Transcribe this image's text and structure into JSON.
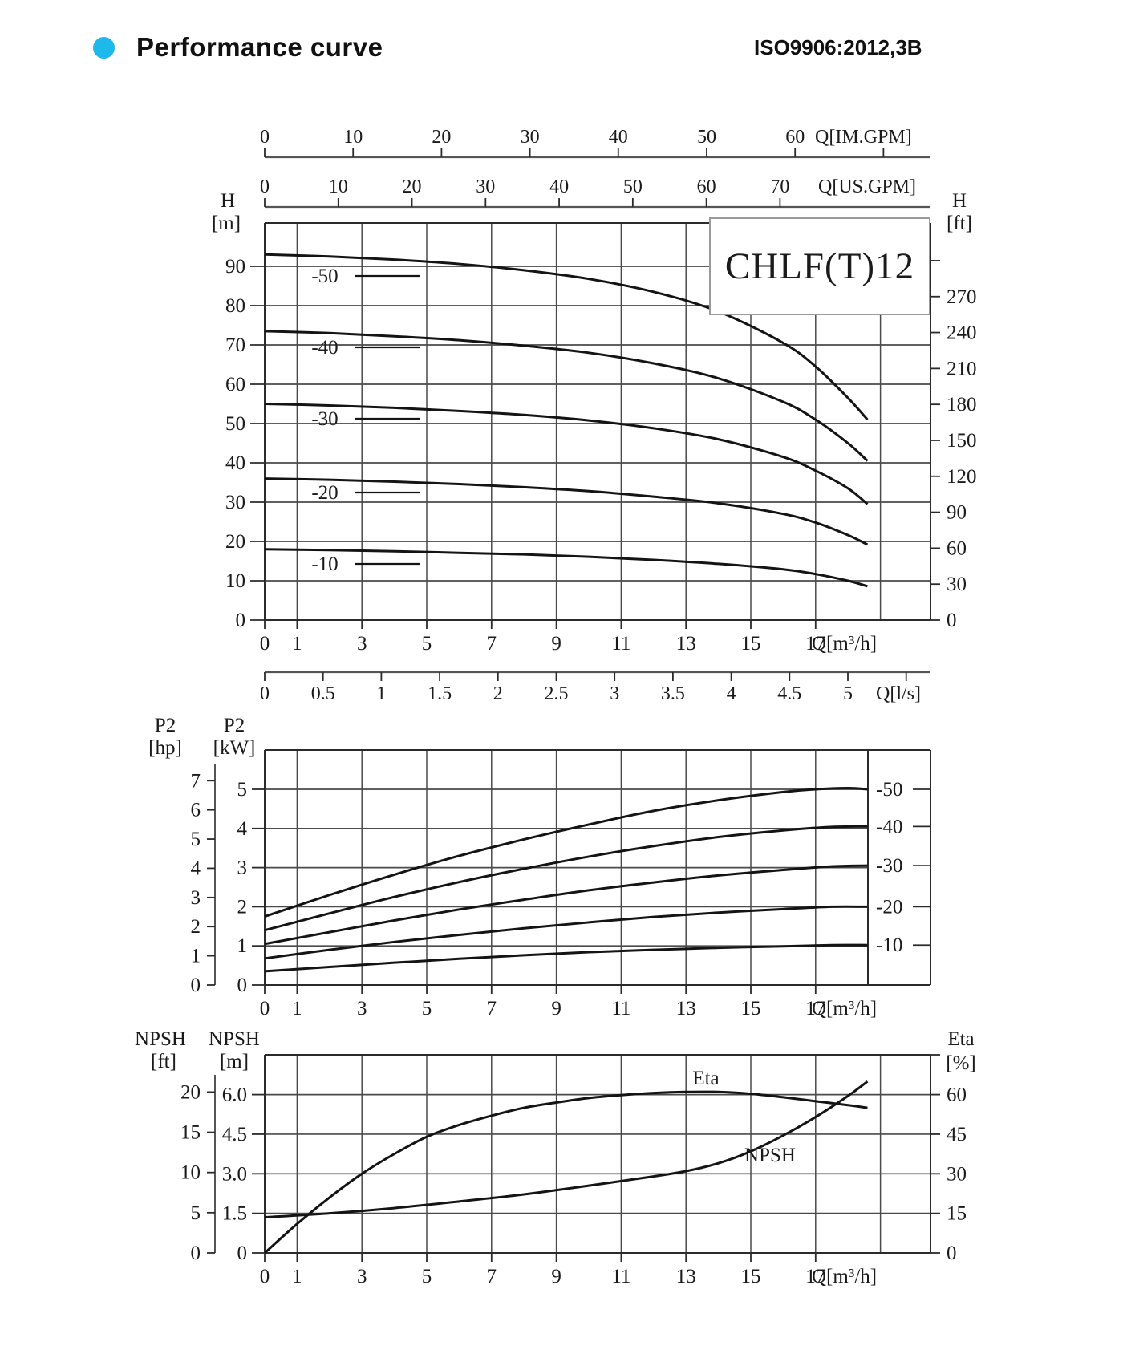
{
  "header": {
    "title": "Performance curve",
    "standard": "ISO9906:2012,3B",
    "bullet_color": "#1db9ea"
  },
  "axes": {
    "im_gpm": {
      "title": "Q[IM.GPM]",
      "ticks": [
        "0",
        "10",
        "20",
        "30",
        "40",
        "50",
        "60"
      ]
    },
    "us_gpm": {
      "title": "Q[US.GPM]",
      "ticks": [
        "0",
        "10",
        "20",
        "30",
        "40",
        "50",
        "60",
        "70"
      ]
    },
    "q_ls": {
      "title": "Q[l/s]",
      "ticks": [
        "0",
        "0.5",
        "1",
        "1.5",
        "2",
        "2.5",
        "3",
        "3.5",
        "4",
        "4.5",
        "5"
      ]
    },
    "q_m3h": {
      "title": "Q[m³/h]",
      "ticks": [
        "0",
        "1",
        "3",
        "5",
        "7",
        "9",
        "11",
        "13",
        "15",
        "17"
      ]
    }
  },
  "chart_data": [
    {
      "id": "head-curves",
      "type": "line",
      "title": "CHLF(T)12",
      "xlabel": "Q[m³/h]",
      "x_range": [
        0,
        20.5
      ],
      "y_left": {
        "label": "H",
        "unit": "[m]",
        "ticks": [
          "0",
          "10",
          "20",
          "30",
          "40",
          "50",
          "60",
          "70",
          "80",
          "90"
        ],
        "range": [
          0,
          101
        ]
      },
      "y_right": {
        "label": "H",
        "unit": "[ft]",
        "ticks": [
          "0",
          "30",
          "60",
          "90",
          "120",
          "150",
          "180",
          "210",
          "240",
          "270"
        ]
      },
      "series": [
        {
          "name": "-50",
          "points": [
            [
              0,
              93
            ],
            [
              2,
              92.5
            ],
            [
              4,
              91.7
            ],
            [
              6,
              90.6
            ],
            [
              8,
              89
            ],
            [
              10,
              86.8
            ],
            [
              12,
              83.5
            ],
            [
              14,
              78.5
            ],
            [
              16,
              70.5
            ],
            [
              17,
              64.5
            ],
            [
              18,
              56.5
            ],
            [
              18.6,
              51
            ]
          ]
        },
        {
          "name": "-40",
          "points": [
            [
              0,
              73.5
            ],
            [
              2,
              73
            ],
            [
              4,
              72.2
            ],
            [
              6,
              71.2
            ],
            [
              8,
              69.8
            ],
            [
              10,
              68
            ],
            [
              12,
              65.3
            ],
            [
              14,
              61.5
            ],
            [
              16,
              55.5
            ],
            [
              17,
              51
            ],
            [
              18,
              45
            ],
            [
              18.6,
              40.5
            ]
          ]
        },
        {
          "name": "-30",
          "points": [
            [
              0,
              55
            ],
            [
              2,
              54.6
            ],
            [
              4,
              54
            ],
            [
              6,
              53.2
            ],
            [
              8,
              52.2
            ],
            [
              10,
              50.8
            ],
            [
              12,
              48.8
            ],
            [
              14,
              46
            ],
            [
              16,
              41.5
            ],
            [
              17,
              38
            ],
            [
              18,
              33.5
            ],
            [
              18.6,
              29.5
            ]
          ]
        },
        {
          "name": "-20",
          "points": [
            [
              0,
              36
            ],
            [
              2,
              35.7
            ],
            [
              4,
              35.2
            ],
            [
              6,
              34.6
            ],
            [
              8,
              33.8
            ],
            [
              10,
              32.8
            ],
            [
              12,
              31.4
            ],
            [
              14,
              29.7
            ],
            [
              16,
              27
            ],
            [
              17,
              24.8
            ],
            [
              18,
              21.6
            ],
            [
              18.6,
              19.2
            ]
          ]
        },
        {
          "name": "-10",
          "points": [
            [
              0,
              18
            ],
            [
              2,
              17.8
            ],
            [
              4,
              17.5
            ],
            [
              6,
              17.1
            ],
            [
              8,
              16.7
            ],
            [
              10,
              16.1
            ],
            [
              12,
              15.3
            ],
            [
              14,
              14.3
            ],
            [
              16,
              12.9
            ],
            [
              17,
              11.7
            ],
            [
              18,
              10
            ],
            [
              18.6,
              8.6
            ]
          ]
        }
      ]
    },
    {
      "id": "power-curves",
      "type": "line",
      "xlabel": "Q[m³/h]",
      "y_left": {
        "label": "P2",
        "unit": "[kW]",
        "ticks": [
          "0",
          "1",
          "2",
          "3",
          "4",
          "5"
        ],
        "range": [
          0,
          6
        ]
      },
      "y_left_outer": {
        "label": "P2",
        "unit": "[hp]",
        "ticks": [
          "0",
          "1",
          "2",
          "3",
          "4",
          "5",
          "6",
          "7"
        ]
      },
      "series": [
        {
          "name": "-50",
          "points": [
            [
              0,
              1.75
            ],
            [
              2,
              2.3
            ],
            [
              4,
              2.82
            ],
            [
              6,
              3.3
            ],
            [
              8,
              3.72
            ],
            [
              10,
              4.1
            ],
            [
              12,
              4.45
            ],
            [
              14,
              4.72
            ],
            [
              16,
              4.93
            ],
            [
              17,
              5.0
            ],
            [
              18,
              5.03
            ],
            [
              18.6,
              5.0
            ]
          ]
        },
        {
          "name": "-40",
          "points": [
            [
              0,
              1.4
            ],
            [
              2,
              1.83
            ],
            [
              4,
              2.25
            ],
            [
              6,
              2.63
            ],
            [
              8,
              2.97
            ],
            [
              10,
              3.28
            ],
            [
              12,
              3.55
            ],
            [
              14,
              3.78
            ],
            [
              16,
              3.95
            ],
            [
              17.5,
              4.04
            ],
            [
              18.6,
              4.05
            ]
          ]
        },
        {
          "name": "-30",
          "points": [
            [
              0,
              1.05
            ],
            [
              2,
              1.35
            ],
            [
              4,
              1.65
            ],
            [
              6,
              1.93
            ],
            [
              8,
              2.18
            ],
            [
              10,
              2.42
            ],
            [
              12,
              2.62
            ],
            [
              14,
              2.8
            ],
            [
              16,
              2.94
            ],
            [
              17.5,
              3.03
            ],
            [
              18.6,
              3.05
            ]
          ]
        },
        {
          "name": "-20",
          "points": [
            [
              0,
              0.68
            ],
            [
              2,
              0.9
            ],
            [
              4,
              1.1
            ],
            [
              6,
              1.28
            ],
            [
              8,
              1.45
            ],
            [
              10,
              1.6
            ],
            [
              12,
              1.74
            ],
            [
              14,
              1.85
            ],
            [
              16,
              1.94
            ],
            [
              17.5,
              2.0
            ],
            [
              18.6,
              2.0
            ]
          ]
        },
        {
          "name": "-10",
          "points": [
            [
              0,
              0.35
            ],
            [
              2,
              0.46
            ],
            [
              4,
              0.57
            ],
            [
              6,
              0.67
            ],
            [
              8,
              0.76
            ],
            [
              10,
              0.84
            ],
            [
              12,
              0.9
            ],
            [
              14,
              0.95
            ],
            [
              16,
              0.99
            ],
            [
              17.5,
              1.02
            ],
            [
              18.6,
              1.02
            ]
          ]
        }
      ]
    },
    {
      "id": "npsh-eta-curves",
      "type": "line",
      "xlabel": "Q[m³/h]",
      "y_left": {
        "label": "NPSH",
        "unit": "[m]",
        "ticks": [
          "0",
          "1.5",
          "3.0",
          "4.5",
          "6.0"
        ],
        "range": [
          0,
          7.5
        ]
      },
      "y_left_outer": {
        "label": "NPSH",
        "unit": "[ft]",
        "ticks": [
          "0",
          "5",
          "10",
          "15",
          "20"
        ]
      },
      "y_right": {
        "label": "Eta",
        "unit": "[%]",
        "ticks": [
          "0",
          "15",
          "30",
          "45",
          "60"
        ]
      },
      "series": [
        {
          "name": "Eta",
          "unit": "%",
          "points": [
            [
              0,
              0
            ],
            [
              1,
              11
            ],
            [
              2,
              21
            ],
            [
              3,
              30
            ],
            [
              4,
              37.5
            ],
            [
              5,
              44
            ],
            [
              6,
              48.5
            ],
            [
              7,
              52
            ],
            [
              8,
              55
            ],
            [
              9,
              57
            ],
            [
              10,
              58.7
            ],
            [
              11,
              59.8
            ],
            [
              12,
              60.6
            ],
            [
              13,
              61
            ],
            [
              14,
              61
            ],
            [
              15,
              60.3
            ],
            [
              16,
              59
            ],
            [
              17,
              57.5
            ],
            [
              18,
              56
            ],
            [
              18.6,
              55
            ]
          ]
        },
        {
          "name": "NPSH",
          "unit": "m",
          "points": [
            [
              0,
              1.35
            ],
            [
              2,
              1.5
            ],
            [
              4,
              1.7
            ],
            [
              6,
              1.95
            ],
            [
              8,
              2.22
            ],
            [
              10,
              2.55
            ],
            [
              12,
              2.9
            ],
            [
              13,
              3.1
            ],
            [
              14,
              3.4
            ],
            [
              15,
              3.85
            ],
            [
              16,
              4.45
            ],
            [
              17,
              5.15
            ],
            [
              18,
              5.95
            ],
            [
              18.6,
              6.5
            ]
          ]
        }
      ]
    }
  ]
}
